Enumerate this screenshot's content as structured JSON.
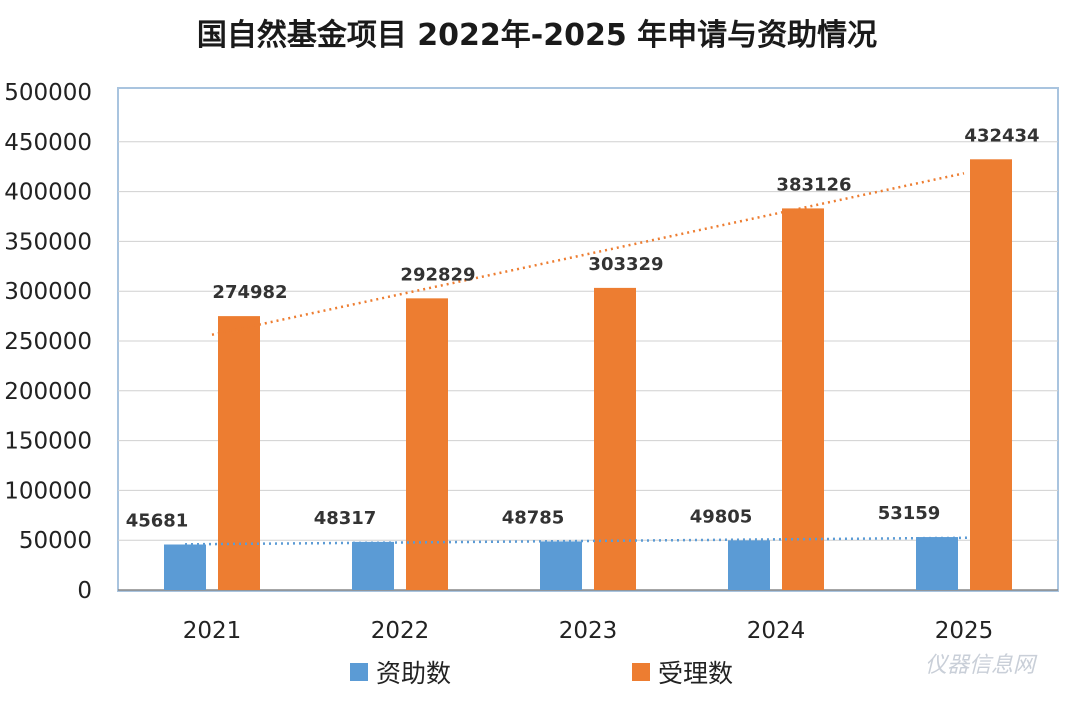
{
  "chart_data": {
    "type": "bar",
    "title": "国自然基金项目 2022年-2025 年申请与资助情况",
    "categories": [
      "2021",
      "2022",
      "2023",
      "2024",
      "2025"
    ],
    "series": [
      {
        "name": "资助数",
        "values": [
          45681,
          48317,
          48785,
          49805,
          53159
        ],
        "color": "#5b9bd5",
        "trendline": true
      },
      {
        "name": "受理数",
        "values": [
          274982,
          292829,
          303329,
          383126,
          432434
        ],
        "color": "#ed7d31",
        "trendline": true
      }
    ],
    "ylim": [
      0,
      500000
    ],
    "yticks": [
      "0",
      "50000",
      "100000",
      "150000",
      "200000",
      "250000",
      "300000",
      "350000",
      "400000",
      "450000",
      "500000"
    ],
    "xlabel": "",
    "ylabel": "",
    "grid": true,
    "legend": "bottom",
    "data_labels": true
  },
  "watermark": "仪器信息网"
}
